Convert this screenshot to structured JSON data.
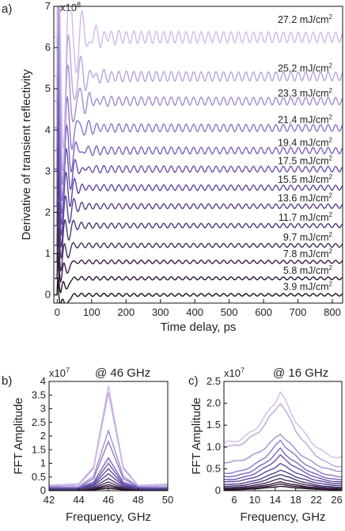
{
  "chart_data": [
    {
      "panel": "a)",
      "type": "line",
      "xlabel": "Time delay, ps",
      "ylabel": "Derivative of transient reflectivity",
      "multiplier": "x10",
      "multiplier_exp": "8",
      "xlim": [
        -10,
        830
      ],
      "ylim": [
        -0.2,
        7
      ],
      "xticks": [
        0,
        100,
        200,
        300,
        400,
        500,
        600,
        700,
        800
      ],
      "yticks": [
        0,
        1,
        2,
        3,
        4,
        5,
        6,
        7
      ],
      "series": [
        {
          "name": "3.9",
          "offset": 0.0,
          "freq_cycles_per_ps": 0.046,
          "amp": 0.04,
          "color": "#1a0f1a"
        },
        {
          "name": "5.8",
          "offset": 0.4,
          "freq_cycles_per_ps": 0.046,
          "amp": 0.045,
          "color": "#2a1530"
        },
        {
          "name": "7.8",
          "offset": 0.8,
          "freq_cycles_per_ps": 0.046,
          "amp": 0.05,
          "color": "#3d1a45"
        },
        {
          "name": "9.7",
          "offset": 1.2,
          "freq_cycles_per_ps": 0.046,
          "amp": 0.06,
          "color": "#42305a"
        },
        {
          "name": "11.7",
          "offset": 1.68,
          "freq_cycles_per_ps": 0.046,
          "amp": 0.065,
          "color": "#483a75"
        },
        {
          "name": "13.6",
          "offset": 2.15,
          "freq_cycles_per_ps": 0.046,
          "amp": 0.07,
          "color": "#55408c"
        },
        {
          "name": "15.5",
          "offset": 2.6,
          "freq_cycles_per_ps": 0.046,
          "amp": 0.08,
          "color": "#5f47a0"
        },
        {
          "name": "17.5",
          "offset": 3.05,
          "freq_cycles_per_ps": 0.046,
          "amp": 0.09,
          "color": "#6a52b0"
        },
        {
          "name": "19.4",
          "offset": 3.5,
          "freq_cycles_per_ps": 0.046,
          "amp": 0.1,
          "color": "#7a63bd"
        },
        {
          "name": "21.4",
          "offset": 4.05,
          "freq_cycles_per_ps": 0.046,
          "amp": 0.11,
          "color": "#8a78c8"
        },
        {
          "name": "23.3",
          "offset": 4.7,
          "freq_cycles_per_ps": 0.046,
          "amp": 0.12,
          "color": "#a08ed2"
        },
        {
          "name": "25.2",
          "offset": 5.3,
          "freq_cycles_per_ps": 0.046,
          "amp": 0.14,
          "color": "#b7a5dd"
        },
        {
          "name": "27.2",
          "offset": 6.25,
          "freq_cycles_per_ps": 0.046,
          "amp": 0.17,
          "color": "#d2b9e8"
        }
      ],
      "fluence_unit": "mJ/cm",
      "fluence_unit_exp": "2"
    },
    {
      "panel": "b)",
      "type": "line",
      "title": "@ 46 GHz",
      "xlabel": "Frequency, GHz",
      "ylabel": "FFT Amplitude",
      "multiplier": "x10",
      "multiplier_exp": "7",
      "xlim": [
        42,
        50
      ],
      "ylim": [
        0,
        4
      ],
      "xticks": [
        42,
        44,
        46,
        48,
        50
      ],
      "yticks": [
        0,
        0.5,
        1,
        1.5,
        2,
        2.5,
        3,
        3.5,
        4
      ],
      "ytick_labels": [
        "0",
        "0.5",
        "1",
        "1.5",
        "2",
        "2.5",
        "3",
        "3.5",
        "4"
      ],
      "x": [
        42,
        43,
        44,
        45,
        46,
        47,
        48,
        49,
        50
      ],
      "peaks": [
        0.08,
        0.15,
        0.22,
        0.32,
        0.45,
        0.62,
        0.8,
        1.0,
        1.2,
        1.8,
        2.2,
        3.6,
        3.85
      ],
      "base": [
        0.02,
        0.03,
        0.04,
        0.05,
        0.06,
        0.08,
        0.09,
        0.1,
        0.12,
        0.14,
        0.16,
        0.2,
        0.22
      ],
      "colors": [
        "#1a0f1a",
        "#2a1530",
        "#3d1a45",
        "#42305a",
        "#483a75",
        "#55408c",
        "#5f47a0",
        "#6a52b0",
        "#7a63bd",
        "#8a78c8",
        "#a08ed2",
        "#b7a5dd",
        "#d2b9e8"
      ]
    },
    {
      "panel": "c)",
      "type": "line",
      "title": "@ 16 GHz",
      "xlabel": "Frequency, GHz",
      "ylabel": "FFT Amplitude",
      "multiplier": "x10",
      "multiplier_exp": "7",
      "xlim": [
        4,
        27
      ],
      "ylim": [
        0,
        2.5
      ],
      "xticks": [
        6,
        10,
        14,
        18,
        22,
        26
      ],
      "yticks": [
        0,
        0.5,
        1,
        1.5,
        2,
        2.5
      ],
      "ytick_labels": [
        "0",
        "0.5",
        "1.0",
        "1.5",
        "2.0",
        "2.5"
      ],
      "x": [
        4,
        6,
        8,
        10,
        12,
        14,
        16,
        18,
        20,
        22,
        24,
        26,
        27
      ],
      "peaks": [
        0.1,
        0.15,
        0.2,
        0.28,
        0.38,
        0.48,
        0.62,
        0.8,
        0.95,
        1.15,
        1.32,
        2.05,
        2.27
      ],
      "starts": [
        0.02,
        0.03,
        0.05,
        0.07,
        0.1,
        0.14,
        0.2,
        0.25,
        0.32,
        0.4,
        0.65,
        1.0,
        1.1
      ],
      "ends": [
        0.02,
        0.03,
        0.04,
        0.06,
        0.08,
        0.12,
        0.16,
        0.2,
        0.25,
        0.32,
        0.45,
        0.55,
        0.75
      ],
      "colors": [
        "#1a0f1a",
        "#2a1530",
        "#3d1a45",
        "#42305a",
        "#483a75",
        "#55408c",
        "#5f47a0",
        "#6a52b0",
        "#7a63bd",
        "#8a78c8",
        "#a08ed2",
        "#b7a5dd",
        "#d2b9e8"
      ]
    }
  ]
}
